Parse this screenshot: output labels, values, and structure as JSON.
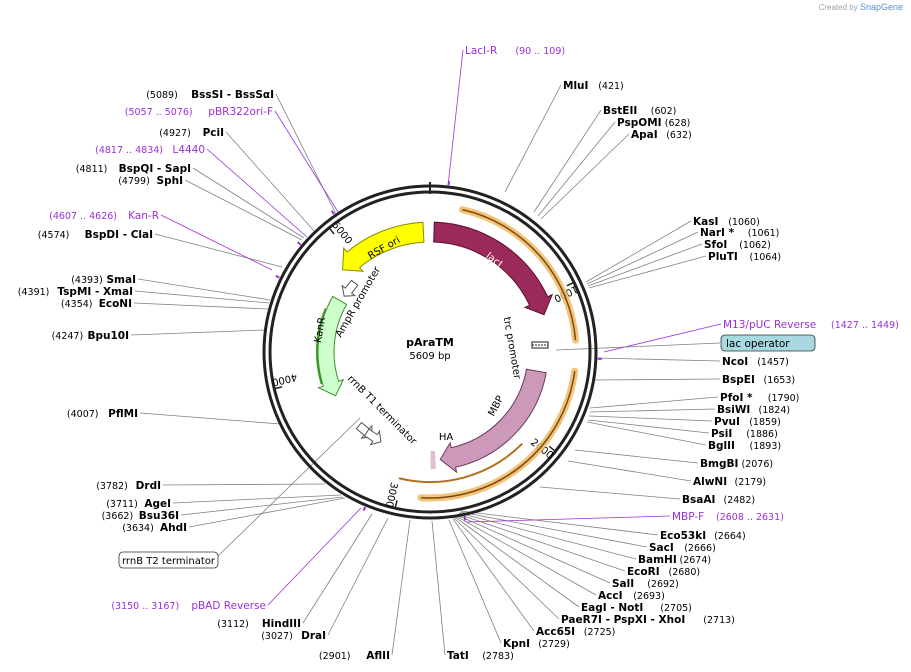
{
  "watermark": {
    "prefix": "Created by",
    "brand": "SnapGene"
  },
  "plasmid": {
    "name": "pAraTM",
    "size_label": "5609 bp",
    "length": 5609
  },
  "colors": {
    "backbone": "#222222",
    "leader_enzyme": "#808080",
    "leader_primer": "#9b30d8",
    "primer_text": "#9b30d8",
    "enzyme_text": "#000000",
    "lacI": "#9b2a5a",
    "rsf_ori": "#ffff00",
    "kanR": "#ccffcc",
    "kanR_stroke": "#3c8f2a",
    "mbp": "#cc99bb",
    "ha": "#e0c0d0",
    "orange_halo": "#f0b860",
    "green_primer": "#3c9a1c"
  },
  "ticks": [
    "1000",
    "2000",
    "3000",
    "4000",
    "5000"
  ],
  "features": [
    {
      "name": "lacI"
    },
    {
      "name": "RSF ori"
    },
    {
      "name": "KanR"
    },
    {
      "name": "AmpR promoter"
    },
    {
      "name": "trc promoter"
    },
    {
      "name": "MBP"
    },
    {
      "name": "HA"
    },
    {
      "name": "rrnB T1 terminator"
    }
  ],
  "enzymes": [
    {
      "name": "MluI",
      "pos": "421"
    },
    {
      "name": "BstEII",
      "pos": "602"
    },
    {
      "name": "PspOMI",
      "pos": "628"
    },
    {
      "name": "ApaI",
      "pos": "632"
    },
    {
      "name": "KasI",
      "pos": "1060"
    },
    {
      "name": "NarI *",
      "pos": "1061"
    },
    {
      "name": "SfoI",
      "pos": "1062"
    },
    {
      "name": "PluTI",
      "pos": "1064"
    },
    {
      "name": "NcoI",
      "pos": "1457"
    },
    {
      "name": "BspEI",
      "pos": "1653"
    },
    {
      "name": "PfoI *",
      "pos": "1790"
    },
    {
      "name": "BsiWI",
      "pos": "1824"
    },
    {
      "name": "PvuI",
      "pos": "1859"
    },
    {
      "name": "PsiI",
      "pos": "1886"
    },
    {
      "name": "BglII",
      "pos": "1893"
    },
    {
      "name": "BmgBI",
      "pos": "2076"
    },
    {
      "name": "AlwNI",
      "pos": "2179"
    },
    {
      "name": "BsaAI",
      "pos": "2482"
    },
    {
      "name": "Eco53kI",
      "pos": "2664"
    },
    {
      "name": "SacI",
      "pos": "2666"
    },
    {
      "name": "BamHI",
      "pos": "2674"
    },
    {
      "name": "EcoRI",
      "pos": "2680"
    },
    {
      "name": "SalI",
      "pos": "2692"
    },
    {
      "name": "AccI",
      "pos": "2693"
    },
    {
      "name": "EagI - NotI",
      "pos": "2705"
    },
    {
      "name": "PaeR7I - PspXI - XhoI",
      "pos": "2713"
    },
    {
      "name": "Acc65I",
      "pos": "2725"
    },
    {
      "name": "KpnI",
      "pos": "2729"
    },
    {
      "name": "TatI",
      "pos": "2783"
    },
    {
      "name": "AflII",
      "pos": "2901"
    },
    {
      "name": "DraI",
      "pos": "3027"
    },
    {
      "name": "HindIII",
      "pos": "3112"
    },
    {
      "name": "AhdI",
      "pos": "3634"
    },
    {
      "name": "Bsu36I",
      "pos": "3662"
    },
    {
      "name": "AgeI",
      "pos": "3711"
    },
    {
      "name": "DrdI",
      "pos": "3782"
    },
    {
      "name": "PflMI",
      "pos": "4007"
    },
    {
      "name": "Bpu10I",
      "pos": "4247"
    },
    {
      "name": "EcoNI",
      "pos": "4354"
    },
    {
      "name": "TspMI - XmaI",
      "pos": "4391"
    },
    {
      "name": "SmaI",
      "pos": "4393"
    },
    {
      "name": "BspDI - ClaI",
      "pos": "4574"
    },
    {
      "name": "SphI",
      "pos": "4799"
    },
    {
      "name": "BspQI - SapI",
      "pos": "4811"
    },
    {
      "name": "PciI",
      "pos": "4927"
    },
    {
      "name": "BssSI - BssSαI",
      "pos": "5089"
    }
  ],
  "primers": [
    {
      "name": "LacI-R",
      "range": "(90 .. 109)"
    },
    {
      "name": "M13/pUC Reverse",
      "range": "(1427 .. 1449)"
    },
    {
      "name": "MBP-F",
      "range": "(2608 .. 2631)"
    },
    {
      "name": "pBAD Reverse",
      "range": "(3150 .. 3167)"
    },
    {
      "name": "Kan-R",
      "range": "(4607 .. 4626)"
    },
    {
      "name": "L4440",
      "range": "(4817 .. 4834)"
    },
    {
      "name": "pBR322ori-F",
      "range": "(5057 .. 5076)"
    }
  ],
  "boxed_labels": [
    {
      "name": "lac operator"
    },
    {
      "name": "rrnB T2 terminator"
    }
  ]
}
